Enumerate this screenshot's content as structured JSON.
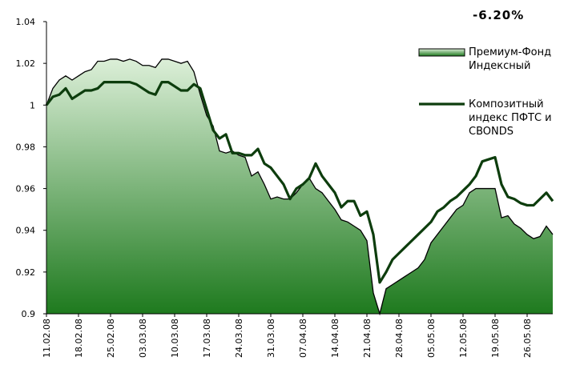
{
  "chart_data": {
    "type": "line",
    "annotation": "-6.20%",
    "categories": [
      "11.02.08",
      null,
      null,
      null,
      null,
      "18.02.08",
      null,
      null,
      null,
      null,
      "25.02.08",
      null,
      null,
      null,
      null,
      "03.03.08",
      null,
      null,
      null,
      null,
      "10.03.08",
      null,
      null,
      null,
      null,
      "17.03.08",
      null,
      null,
      null,
      null,
      "24.03.08",
      null,
      null,
      null,
      null,
      "31.03.08",
      null,
      null,
      null,
      null,
      "07.04.08",
      null,
      null,
      null,
      null,
      "14.04.08",
      null,
      null,
      null,
      null,
      "21.04.08",
      null,
      null,
      null,
      null,
      "28.04.08",
      null,
      null,
      null,
      null,
      "05.05.08",
      null,
      null,
      null,
      null,
      "12.05.08",
      null,
      null,
      null,
      null,
      "19.05.08",
      null,
      null,
      null,
      null,
      "26.05.08",
      null,
      null,
      null,
      null
    ],
    "series": [
      {
        "name": "Премиум-Фонд Индексный",
        "style": "area",
        "color": "#1e7a1e",
        "color_top": "#dcefd8",
        "values": [
          1.0,
          1.008,
          1.012,
          1.014,
          1.012,
          1.014,
          1.016,
          1.017,
          1.021,
          1.021,
          1.022,
          1.022,
          1.021,
          1.022,
          1.021,
          1.019,
          1.019,
          1.018,
          1.022,
          1.022,
          1.021,
          1.02,
          1.021,
          1.016,
          1.005,
          0.995,
          0.99,
          0.978,
          0.977,
          0.978,
          0.976,
          0.975,
          0.966,
          0.968,
          0.962,
          0.955,
          0.956,
          0.955,
          0.955,
          0.958,
          0.962,
          0.965,
          0.96,
          0.958,
          0.954,
          0.95,
          0.945,
          0.944,
          0.942,
          0.94,
          0.935,
          0.91,
          0.9,
          0.912,
          0.914,
          0.916,
          0.918,
          0.92,
          0.922,
          0.926,
          0.934,
          0.938,
          0.942,
          0.946,
          0.95,
          0.952,
          0.958,
          0.96,
          0.96,
          0.96,
          0.96,
          0.946,
          0.947,
          0.943,
          0.941,
          0.938,
          0.936,
          0.937,
          0.942,
          0.938
        ]
      },
      {
        "name": "Композитный индекс ПФТС и CBONDS",
        "style": "line",
        "color": "#0d3d0d",
        "values": [
          1.0,
          1.004,
          1.005,
          1.008,
          1.003,
          1.005,
          1.007,
          1.007,
          1.008,
          1.011,
          1.011,
          1.011,
          1.011,
          1.011,
          1.01,
          1.008,
          1.006,
          1.005,
          1.011,
          1.011,
          1.009,
          1.007,
          1.007,
          1.01,
          1.008,
          0.998,
          0.988,
          0.984,
          0.986,
          0.977,
          0.977,
          0.976,
          0.976,
          0.979,
          0.972,
          0.97,
          0.966,
          0.962,
          0.955,
          0.96,
          0.962,
          0.965,
          0.972,
          0.966,
          0.962,
          0.958,
          0.951,
          0.954,
          0.954,
          0.947,
          0.949,
          0.938,
          0.915,
          0.92,
          0.926,
          0.929,
          0.932,
          0.935,
          0.938,
          0.941,
          0.944,
          0.949,
          0.951,
          0.954,
          0.956,
          0.959,
          0.962,
          0.966,
          0.973,
          0.974,
          0.975,
          0.962,
          0.956,
          0.955,
          0.953,
          0.952,
          0.952,
          0.955,
          0.958,
          0.954
        ]
      }
    ],
    "ylim": [
      0.9,
      1.04
    ],
    "yticks": [
      0.9,
      0.92,
      0.94,
      0.96,
      0.98,
      1,
      1.02,
      1.04
    ],
    "grid": false,
    "legend": "right"
  }
}
